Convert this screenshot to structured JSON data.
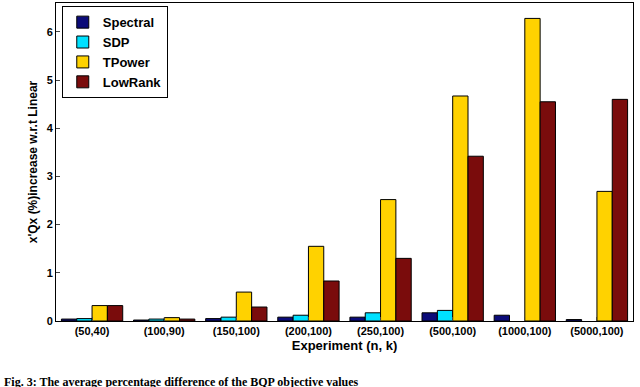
{
  "chart_data": {
    "type": "bar",
    "caption": "Fig. 3: The average percentage difference of the BQP objective values",
    "x_label": "Experiment (n, k)",
    "y_label": "x'Qx (%)increase w.r.t Linear",
    "categories": [
      "(50,40)",
      "(100,90)",
      "(150,100)",
      "(200,100)",
      "(250,100)",
      "(500,100)",
      "(1000,100)",
      "(5000,100)"
    ],
    "series": [
      {
        "name": "Spectral",
        "color": "#0b0b78",
        "values": [
          0.04,
          0.02,
          0.05,
          0.08,
          0.08,
          0.17,
          0.12,
          0.03
        ]
      },
      {
        "name": "SDP",
        "color": "#00e1ff",
        "values": [
          0.05,
          0.04,
          0.08,
          0.12,
          0.17,
          0.22,
          null,
          null
        ]
      },
      {
        "name": "TPower",
        "color": "#ffd200",
        "values": [
          0.32,
          0.07,
          0.6,
          1.55,
          2.52,
          4.67,
          6.28,
          2.69
        ]
      },
      {
        "name": "LowRank",
        "color": "#7a0c0c",
        "values": [
          0.32,
          0.04,
          0.29,
          0.83,
          1.3,
          3.42,
          4.55,
          4.6
        ]
      }
    ],
    "ylim": [
      0,
      6.6
    ],
    "yticks": [
      0,
      1,
      2,
      3,
      4,
      5,
      6
    ],
    "grid": false,
    "legend": "upper left"
  }
}
